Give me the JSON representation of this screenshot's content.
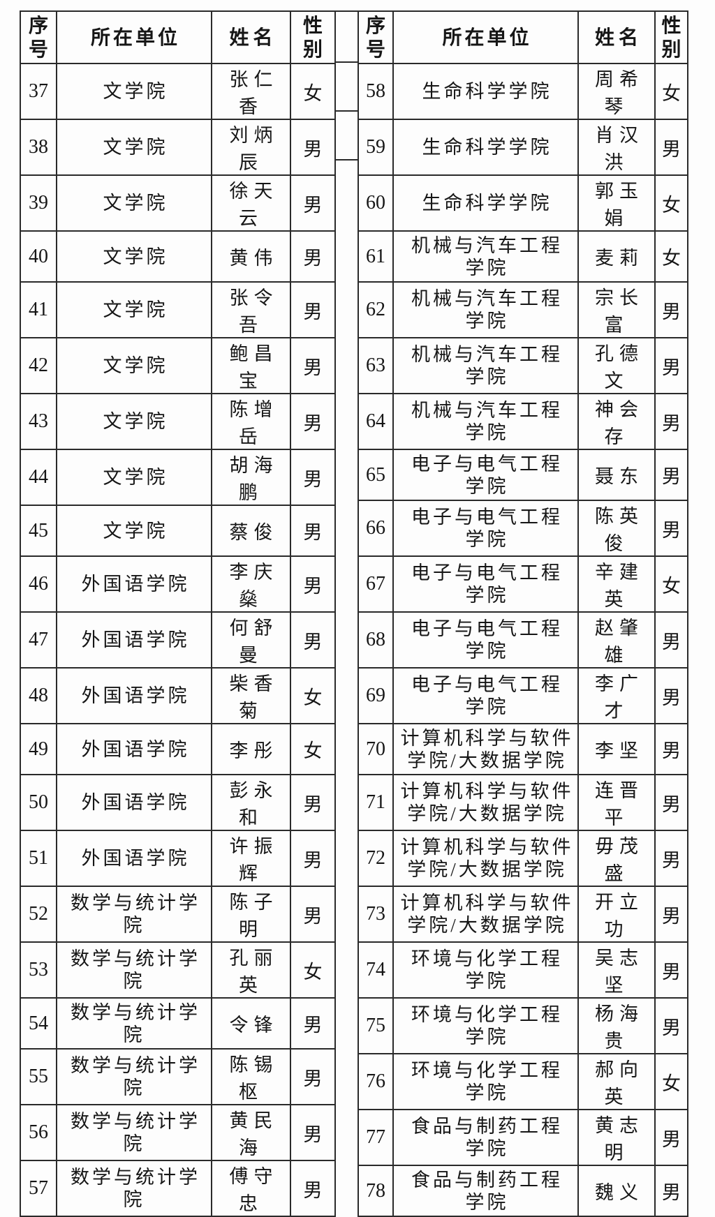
{
  "document": {
    "background": "#fdfdfd",
    "line_color": "#2a2a2a",
    "text_color": "#161616"
  },
  "left_table": {
    "headers": {
      "index_lines": [
        "序",
        "号"
      ],
      "unit": "所在单位",
      "name": "姓名",
      "gender_lines": [
        "性",
        "别"
      ]
    },
    "rows": [
      {
        "index": "37",
        "unit_lines": [
          "文学院"
        ],
        "name": "张仁香",
        "gender": "女"
      },
      {
        "index": "38",
        "unit_lines": [
          "文学院"
        ],
        "name": "刘炳辰",
        "gender": "男"
      },
      {
        "index": "39",
        "unit_lines": [
          "文学院"
        ],
        "name": "徐天云",
        "gender": "男"
      },
      {
        "index": "40",
        "unit_lines": [
          "文学院"
        ],
        "name": "黄伟",
        "gender": "男"
      },
      {
        "index": "41",
        "unit_lines": [
          "文学院"
        ],
        "name": "张令吾",
        "gender": "男"
      },
      {
        "index": "42",
        "unit_lines": [
          "文学院"
        ],
        "name": "鲍昌宝",
        "gender": "男"
      },
      {
        "index": "43",
        "unit_lines": [
          "文学院"
        ],
        "name": "陈增岳",
        "gender": "男"
      },
      {
        "index": "44",
        "unit_lines": [
          "文学院"
        ],
        "name": "胡海鹏",
        "gender": "男"
      },
      {
        "index": "45",
        "unit_lines": [
          "文学院"
        ],
        "name": "蔡俊",
        "gender": "男"
      },
      {
        "index": "46",
        "unit_lines": [
          "外国语学院"
        ],
        "name": "李庆燊",
        "gender": "男"
      },
      {
        "index": "47",
        "unit_lines": [
          "外国语学院"
        ],
        "name": "何舒曼",
        "gender": "男"
      },
      {
        "index": "48",
        "unit_lines": [
          "外国语学院"
        ],
        "name": "柴香菊",
        "gender": "女"
      },
      {
        "index": "49",
        "unit_lines": [
          "外国语学院"
        ],
        "name": "李彤",
        "gender": "女"
      },
      {
        "index": "50",
        "unit_lines": [
          "外国语学院"
        ],
        "name": "彭永和",
        "gender": "男"
      },
      {
        "index": "51",
        "unit_lines": [
          "外国语学院"
        ],
        "name": "许振辉",
        "gender": "男"
      },
      {
        "index": "52",
        "unit_lines": [
          "数学与统计学院"
        ],
        "name": "陈子明",
        "gender": "男"
      },
      {
        "index": "53",
        "unit_lines": [
          "数学与统计学院"
        ],
        "name": "孔丽英",
        "gender": "女"
      },
      {
        "index": "54",
        "unit_lines": [
          "数学与统计学院"
        ],
        "name": "令锋",
        "gender": "男"
      },
      {
        "index": "55",
        "unit_lines": [
          "数学与统计学院"
        ],
        "name": "陈锡枢",
        "gender": "男"
      },
      {
        "index": "56",
        "unit_lines": [
          "数学与统计学院"
        ],
        "name": "黄民海",
        "gender": "男"
      },
      {
        "index": "57",
        "unit_lines": [
          "数学与统计学院"
        ],
        "name": "傅守忠",
        "gender": "男"
      }
    ]
  },
  "right_table": {
    "headers": {
      "index_lines": [
        "序",
        "号"
      ],
      "unit": "所在单位",
      "name": "姓名",
      "gender_lines": [
        "性",
        "别"
      ]
    },
    "rows": [
      {
        "index": "58",
        "unit_lines": [
          "生命科学学院"
        ],
        "name": "周希琴",
        "gender": "女"
      },
      {
        "index": "59",
        "unit_lines": [
          "生命科学学院"
        ],
        "name": "肖汉洪",
        "gender": "男"
      },
      {
        "index": "60",
        "unit_lines": [
          "生命科学学院"
        ],
        "name": "郭玉娟",
        "gender": "女"
      },
      {
        "index": "61",
        "unit_lines": [
          "机械与汽车工程",
          "学院"
        ],
        "name": "麦莉",
        "gender": "女"
      },
      {
        "index": "62",
        "unit_lines": [
          "机械与汽车工程",
          "学院"
        ],
        "name": "宗长富",
        "gender": "男"
      },
      {
        "index": "63",
        "unit_lines": [
          "机械与汽车工程",
          "学院"
        ],
        "name": "孔德文",
        "gender": "男"
      },
      {
        "index": "64",
        "unit_lines": [
          "机械与汽车工程",
          "学院"
        ],
        "name": "神会存",
        "gender": "男"
      },
      {
        "index": "65",
        "unit_lines": [
          "电子与电气工程",
          "学院"
        ],
        "name": "聂东",
        "gender": "男"
      },
      {
        "index": "66",
        "unit_lines": [
          "电子与电气工程",
          "学院"
        ],
        "name": "陈英俊",
        "gender": "男"
      },
      {
        "index": "67",
        "unit_lines": [
          "电子与电气工程",
          "学院"
        ],
        "name": "辛建英",
        "gender": "女"
      },
      {
        "index": "68",
        "unit_lines": [
          "电子与电气工程",
          "学院"
        ],
        "name": "赵肇雄",
        "gender": "男"
      },
      {
        "index": "69",
        "unit_lines": [
          "电子与电气工程",
          "学院"
        ],
        "name": "李广才",
        "gender": "男"
      },
      {
        "index": "70",
        "unit_lines": [
          "计算机科学与软件",
          "学院/大数据学院"
        ],
        "name": "李坚",
        "gender": "男"
      },
      {
        "index": "71",
        "unit_lines": [
          "计算机科学与软件",
          "学院/大数据学院"
        ],
        "name": "连晋平",
        "gender": "男"
      },
      {
        "index": "72",
        "unit_lines": [
          "计算机科学与软件",
          "学院/大数据学院"
        ],
        "name": "毋茂盛",
        "gender": "男"
      },
      {
        "index": "73",
        "unit_lines": [
          "计算机科学与软件",
          "学院/大数据学院"
        ],
        "name": "开立功",
        "gender": "男"
      },
      {
        "index": "74",
        "unit_lines": [
          "环境与化学工程",
          "学院"
        ],
        "name": "吴志坚",
        "gender": "男"
      },
      {
        "index": "75",
        "unit_lines": [
          "环境与化学工程",
          "学院"
        ],
        "name": "杨海贵",
        "gender": "男"
      },
      {
        "index": "76",
        "unit_lines": [
          "环境与化学工程",
          "学院"
        ],
        "name": "郝向英",
        "gender": "女"
      },
      {
        "index": "77",
        "unit_lines": [
          "食品与制药工程",
          "学院"
        ],
        "name": "黄志明",
        "gender": "男"
      },
      {
        "index": "78",
        "unit_lines": [
          "食品与制药工程",
          "学院"
        ],
        "name": "魏义",
        "gender": "男"
      }
    ]
  }
}
